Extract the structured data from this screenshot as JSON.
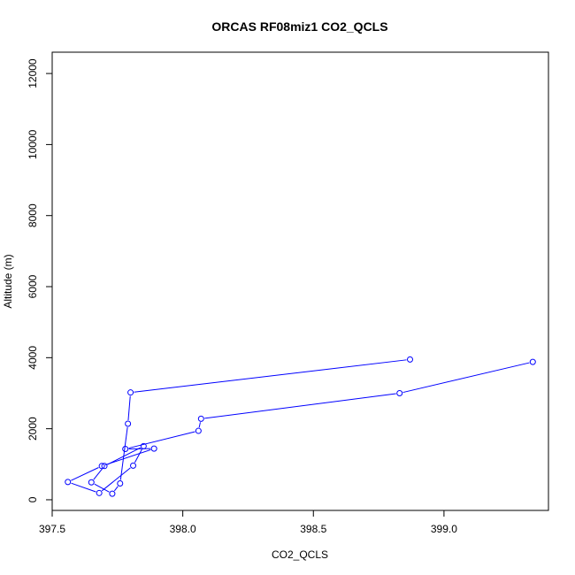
{
  "chart_data": {
    "type": "scatter",
    "title": "ORCAS RF08miz1 CO2_QCLS",
    "xlabel": "CO2_QCLS",
    "ylabel": "Altitude (m)",
    "xlim": [
      397.5,
      399.4
    ],
    "ylim": [
      -300,
      12600
    ],
    "x_ticks": [
      397.5,
      398.0,
      398.5,
      399.0
    ],
    "x_tick_labels": [
      "397.5",
      "398.0",
      "398.5",
      "399.0"
    ],
    "y_ticks": [
      0,
      2000,
      4000,
      6000,
      8000,
      10000,
      12000
    ],
    "y_tick_labels": [
      "0",
      "2000",
      "4000",
      "6000",
      "8000",
      "10000",
      "12000"
    ],
    "grid": false,
    "color": "#0000ff",
    "series": [
      {
        "x": [
          398.87,
          397.8,
          397.79,
          397.76,
          397.73,
          397.65,
          397.7,
          397.85,
          397.81,
          397.68,
          397.56,
          397.69,
          397.89,
          397.78,
          398.06,
          398.07,
          398.83,
          399.34
        ],
        "y": [
          3950,
          3020,
          2140,
          460,
          170,
          490,
          950,
          1510,
          960,
          190,
          500,
          950,
          1440,
          1430,
          1940,
          2280,
          3000,
          3880
        ]
      }
    ]
  }
}
